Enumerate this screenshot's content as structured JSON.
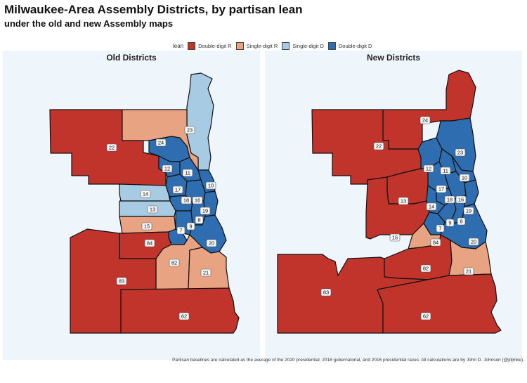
{
  "title": "Milwaukee-Area Assembly Districts, by partisan lean",
  "subtitle": "under the old and new Assembly maps",
  "legend": {
    "title": "lean",
    "items": [
      {
        "label": "Double-digit R",
        "color": "#c0342c"
      },
      {
        "label": "Single-digit R",
        "color": "#e8a383"
      },
      {
        "label": "Single-digit D",
        "color": "#a6cbe3"
      },
      {
        "label": "Double-digit D",
        "color": "#2e6db0"
      }
    ]
  },
  "panels": {
    "old": {
      "title": "Old Districts",
      "districts": [
        {
          "id": "22",
          "lean": "Double-digit R"
        },
        {
          "id": "23",
          "lean": "Single-digit D"
        },
        {
          "id": "24",
          "lean": "Double-digit D"
        },
        {
          "id": "12",
          "lean": "Double-digit D"
        },
        {
          "id": "11",
          "lean": "Double-digit D"
        },
        {
          "id": "10",
          "lean": "Double-digit D"
        },
        {
          "id": "14",
          "lean": "Single-digit D"
        },
        {
          "id": "17",
          "lean": "Double-digit D"
        },
        {
          "id": "18",
          "lean": "Double-digit D"
        },
        {
          "id": "16",
          "lean": "Double-digit D"
        },
        {
          "id": "19",
          "lean": "Double-digit D"
        },
        {
          "id": "13",
          "lean": "Single-digit D"
        },
        {
          "id": "15",
          "lean": "Single-digit R"
        },
        {
          "id": "8",
          "lean": "Double-digit D"
        },
        {
          "id": "9",
          "lean": "Double-digit D"
        },
        {
          "id": "7",
          "lean": "Double-digit D"
        },
        {
          "id": "84",
          "lean": "Double-digit R"
        },
        {
          "id": "20",
          "lean": "Double-digit D"
        },
        {
          "id": "82",
          "lean": "Single-digit R"
        },
        {
          "id": "21",
          "lean": "Single-digit R"
        },
        {
          "id": "83",
          "lean": "Double-digit R"
        },
        {
          "id": "62",
          "lean": "Double-digit R"
        }
      ]
    },
    "new": {
      "title": "New Districts",
      "districts": [
        {
          "id": "24",
          "lean": "Double-digit R"
        },
        {
          "id": "22",
          "lean": "Double-digit R"
        },
        {
          "id": "23",
          "lean": "Double-digit D"
        },
        {
          "id": "12",
          "lean": "Double-digit D"
        },
        {
          "id": "11",
          "lean": "Double-digit D"
        },
        {
          "id": "10",
          "lean": "Double-digit D"
        },
        {
          "id": "17",
          "lean": "Double-digit D"
        },
        {
          "id": "13",
          "lean": "Double-digit R"
        },
        {
          "id": "18",
          "lean": "Double-digit D"
        },
        {
          "id": "16",
          "lean": "Double-digit D"
        },
        {
          "id": "14",
          "lean": "Double-digit D"
        },
        {
          "id": "19",
          "lean": "Double-digit D"
        },
        {
          "id": "15",
          "lean": "Double-digit R"
        },
        {
          "id": "7",
          "lean": "Double-digit D"
        },
        {
          "id": "9",
          "lean": "Double-digit D"
        },
        {
          "id": "8",
          "lean": "Double-digit D"
        },
        {
          "id": "84",
          "lean": "Single-digit R"
        },
        {
          "id": "20",
          "lean": "Double-digit D"
        },
        {
          "id": "82",
          "lean": "Double-digit R"
        },
        {
          "id": "21",
          "lean": "Single-digit R"
        },
        {
          "id": "83",
          "lean": "Double-digit R"
        },
        {
          "id": "62",
          "lean": "Double-digit R"
        }
      ]
    }
  },
  "caption": "Partisan baselines are calculated as the average of the 2020 presidential, 2018 gubernatorial, and 2016 presidential races. All calculations are by John D. Johnson (@jdjmke)."
}
